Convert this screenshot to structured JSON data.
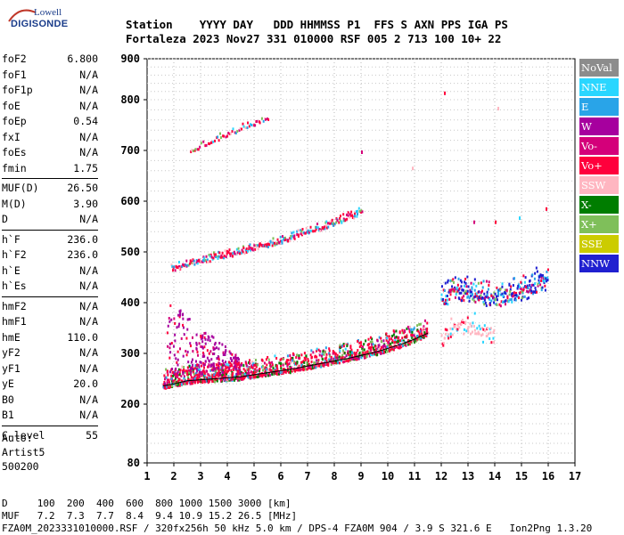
{
  "logo": {
    "top": "Lowell",
    "bottom": "DIGISONDE"
  },
  "header": {
    "line1": "Station    YYYY DAY   DDD HHMMSS P1  FFS S AXN PPS IGA PS",
    "line2": "Fortaleza 2023 Nov27 331 010000 RSF 005 2 713 100 10+ 22"
  },
  "params_group1": [
    {
      "name": "foF2",
      "value": "6.800"
    },
    {
      "name": "foF1",
      "value": "N/A"
    },
    {
      "name": "foF1p",
      "value": "N/A"
    },
    {
      "name": "foE",
      "value": "N/A"
    },
    {
      "name": "foEp",
      "value": "0.54"
    },
    {
      "name": "fxI",
      "value": "N/A"
    },
    {
      "name": "foEs",
      "value": "N/A"
    },
    {
      "name": "fmin",
      "value": "1.75"
    }
  ],
  "params_group2": [
    {
      "name": "MUF(D)",
      "value": "26.50"
    },
    {
      "name": "M(D)",
      "value": "3.90"
    },
    {
      "name": "D",
      "value": "N/A"
    }
  ],
  "params_group3": [
    {
      "name": "h`F",
      "value": "236.0"
    },
    {
      "name": "h`F2",
      "value": "236.0"
    },
    {
      "name": "h`E",
      "value": "N/A"
    },
    {
      "name": "h`Es",
      "value": "N/A"
    }
  ],
  "params_group4": [
    {
      "name": "hmF2",
      "value": "N/A"
    },
    {
      "name": "hmF1",
      "value": "N/A"
    },
    {
      "name": "hmE",
      "value": "110.0"
    },
    {
      "name": "yF2",
      "value": "N/A"
    },
    {
      "name": "yF1",
      "value": "N/A"
    },
    {
      "name": "yE",
      "value": "20.0"
    },
    {
      "name": "B0",
      "value": "N/A"
    },
    {
      "name": "B1",
      "value": "N/A"
    }
  ],
  "params_group5": [
    {
      "name": "C-level",
      "value": "55"
    }
  ],
  "auto": {
    "line1": "Auto:",
    "line2": "Artist5",
    "line3": "500200"
  },
  "legend": [
    {
      "label": "NoVal",
      "color": "#8c8c8c"
    },
    {
      "label": "NNE",
      "color": "#2ad6ff"
    },
    {
      "label": "E",
      "color": "#29a4e8"
    },
    {
      "label": "W",
      "color": "#a6009e"
    },
    {
      "label": "Vo-",
      "color": "#d4007a"
    },
    {
      "label": "Vo+",
      "color": "#ff003c"
    },
    {
      "label": "SSW",
      "color": "#ffb6c1"
    },
    {
      "label": "X-",
      "color": "#007d00"
    },
    {
      "label": "X+",
      "color": "#7fbf5a"
    },
    {
      "label": "SSE",
      "color": "#cccc00"
    },
    {
      "label": "NNW",
      "color": "#2020d0"
    }
  ],
  "footer": {
    "line1": "D     100  200  400  600  800 1000 1500 3000 [km]",
    "line2": "MUF   7.2  7.3  7.7  8.4  9.4 10.9 15.2 26.5 [MHz]",
    "line3": "FZA0M_2023331010000.RSF / 320fx256h 50 kHz 5.0 km / DPS-4 FZA0M 904 / 3.9 S 321.6 E   Ion2Png 1.3.20"
  },
  "chart_data": {
    "type": "scatter",
    "xlim": [
      1,
      17
    ],
    "ylim": [
      80,
      900
    ],
    "x_ticks": [
      1,
      2,
      3,
      4,
      5,
      6,
      7,
      8,
      9,
      10,
      11,
      12,
      13,
      14,
      15,
      16,
      17
    ],
    "y_ticks": [
      80,
      200,
      300,
      400,
      500,
      600,
      700,
      800,
      900
    ],
    "grid": true,
    "traces": [
      {
        "label": "trace-f-main",
        "points": [
          [
            1.6,
            236
          ],
          [
            2,
            240
          ],
          [
            2.5,
            246
          ],
          [
            3,
            248
          ],
          [
            3.5,
            250
          ],
          [
            4,
            252
          ],
          [
            4.5,
            254
          ],
          [
            5,
            258
          ],
          [
            5.5,
            262
          ],
          [
            6,
            266
          ],
          [
            6.5,
            270
          ],
          [
            7,
            275
          ],
          [
            7.5,
            280
          ],
          [
            8,
            285
          ],
          [
            8.5,
            290
          ],
          [
            9,
            296
          ],
          [
            9.5,
            302
          ],
          [
            10,
            310
          ],
          [
            10.5,
            318
          ],
          [
            11,
            328
          ],
          [
            11.5,
            340
          ]
        ]
      },
      {
        "label": "trace-2hop",
        "points": [
          [
            1.9,
            470
          ],
          [
            2.5,
            478
          ],
          [
            3,
            485
          ],
          [
            3.5,
            492
          ],
          [
            4,
            498
          ],
          [
            4.5,
            504
          ],
          [
            5,
            510
          ],
          [
            5.5,
            518
          ],
          [
            6,
            525
          ],
          [
            6.5,
            534
          ],
          [
            7,
            542
          ],
          [
            7.5,
            550
          ],
          [
            8,
            560
          ],
          [
            8.5,
            570
          ],
          [
            9,
            582
          ]
        ]
      },
      {
        "label": "trace-3hop",
        "points": [
          [
            2.6,
            700
          ],
          [
            3,
            710
          ],
          [
            3.5,
            722
          ],
          [
            4,
            734
          ],
          [
            4.5,
            745
          ],
          [
            5,
            755
          ],
          [
            5.5,
            762
          ]
        ]
      },
      {
        "label": "trace-spread",
        "points": [
          [
            12,
            420
          ],
          [
            12.5,
            430
          ],
          [
            13,
            425
          ],
          [
            13.5,
            420
          ],
          [
            14,
            418
          ],
          [
            14.5,
            425
          ],
          [
            15,
            430
          ],
          [
            15.5,
            440
          ],
          [
            16,
            455
          ]
        ]
      },
      {
        "label": "trace-spread-low",
        "points": [
          [
            12,
            340
          ],
          [
            12.5,
            360
          ],
          [
            13,
            370
          ],
          [
            13.5,
            355
          ],
          [
            14,
            345
          ]
        ]
      }
    ],
    "isolated_points": [
      [
        12.1,
        820
      ],
      [
        14.1,
        786
      ],
      [
        10.9,
        668
      ],
      [
        9.0,
        700
      ],
      [
        15.9,
        588
      ],
      [
        14.0,
        562
      ],
      [
        13.2,
        562
      ],
      [
        14.9,
        570
      ]
    ]
  }
}
